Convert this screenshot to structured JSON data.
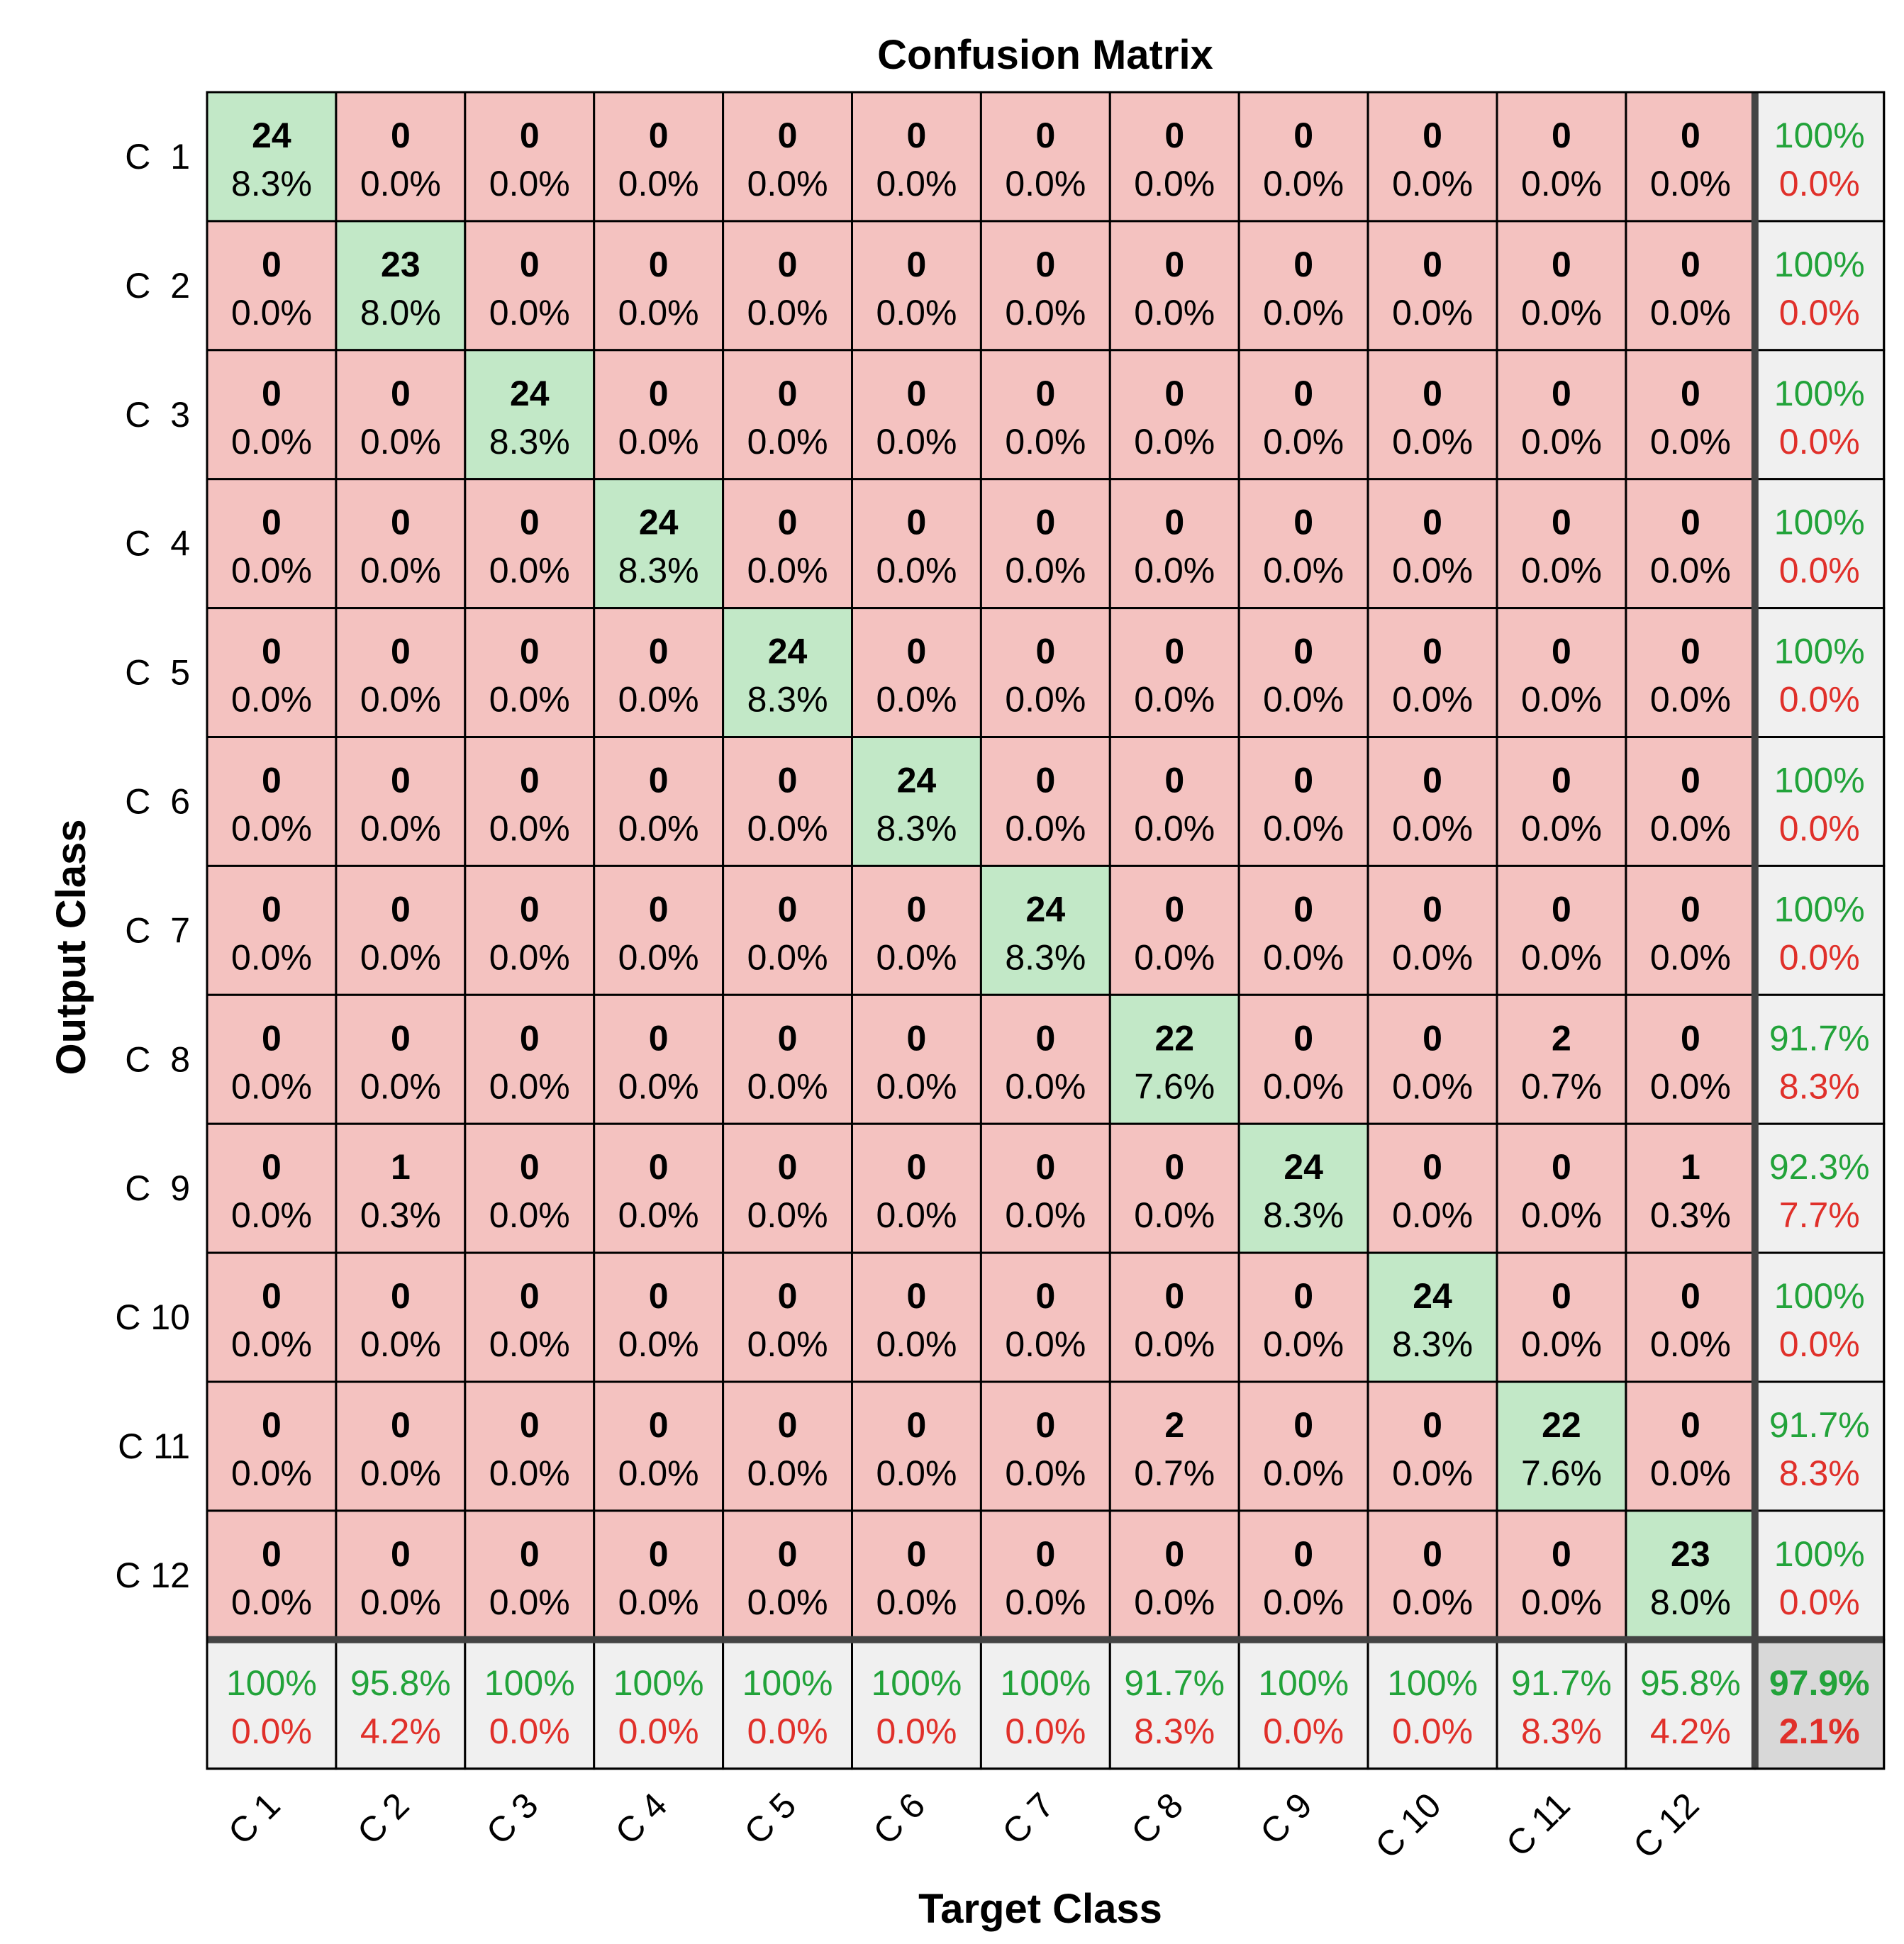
{
  "chart_data": {
    "type": "heatmap",
    "title": "Confusion Matrix",
    "xlabel": "Target Class",
    "ylabel": "Output Class",
    "row_labels": [
      "C  1",
      "C  2",
      "C  3",
      "C  4",
      "C  5",
      "C  6",
      "C  7",
      "C  8",
      "C  9",
      "C 10",
      "C 11",
      "C 12"
    ],
    "col_labels": [
      "C 1",
      "C 2",
      "C 3",
      "C 4",
      "C 5",
      "C 6",
      "C 7",
      "C 8",
      "C 9",
      "C 10",
      "C 11",
      "C 12"
    ],
    "matrix": [
      [
        24,
        0,
        0,
        0,
        0,
        0,
        0,
        0,
        0,
        0,
        0,
        0
      ],
      [
        0,
        23,
        0,
        0,
        0,
        0,
        0,
        0,
        0,
        0,
        0,
        0
      ],
      [
        0,
        0,
        24,
        0,
        0,
        0,
        0,
        0,
        0,
        0,
        0,
        0
      ],
      [
        0,
        0,
        0,
        24,
        0,
        0,
        0,
        0,
        0,
        0,
        0,
        0
      ],
      [
        0,
        0,
        0,
        0,
        24,
        0,
        0,
        0,
        0,
        0,
        0,
        0
      ],
      [
        0,
        0,
        0,
        0,
        0,
        24,
        0,
        0,
        0,
        0,
        0,
        0
      ],
      [
        0,
        0,
        0,
        0,
        0,
        0,
        24,
        0,
        0,
        0,
        0,
        0
      ],
      [
        0,
        0,
        0,
        0,
        0,
        0,
        0,
        22,
        0,
        0,
        2,
        0
      ],
      [
        0,
        1,
        0,
        0,
        0,
        0,
        0,
        0,
        24,
        0,
        0,
        1
      ],
      [
        0,
        0,
        0,
        0,
        0,
        0,
        0,
        0,
        0,
        24,
        0,
        0
      ],
      [
        0,
        0,
        0,
        0,
        0,
        0,
        0,
        2,
        0,
        0,
        22,
        0
      ],
      [
        0,
        0,
        0,
        0,
        0,
        0,
        0,
        0,
        0,
        0,
        0,
        23
      ]
    ],
    "matrix_percent": [
      [
        "8.3%",
        "0.0%",
        "0.0%",
        "0.0%",
        "0.0%",
        "0.0%",
        "0.0%",
        "0.0%",
        "0.0%",
        "0.0%",
        "0.0%",
        "0.0%"
      ],
      [
        "0.0%",
        "8.0%",
        "0.0%",
        "0.0%",
        "0.0%",
        "0.0%",
        "0.0%",
        "0.0%",
        "0.0%",
        "0.0%",
        "0.0%",
        "0.0%"
      ],
      [
        "0.0%",
        "0.0%",
        "8.3%",
        "0.0%",
        "0.0%",
        "0.0%",
        "0.0%",
        "0.0%",
        "0.0%",
        "0.0%",
        "0.0%",
        "0.0%"
      ],
      [
        "0.0%",
        "0.0%",
        "0.0%",
        "8.3%",
        "0.0%",
        "0.0%",
        "0.0%",
        "0.0%",
        "0.0%",
        "0.0%",
        "0.0%",
        "0.0%"
      ],
      [
        "0.0%",
        "0.0%",
        "0.0%",
        "0.0%",
        "8.3%",
        "0.0%",
        "0.0%",
        "0.0%",
        "0.0%",
        "0.0%",
        "0.0%",
        "0.0%"
      ],
      [
        "0.0%",
        "0.0%",
        "0.0%",
        "0.0%",
        "0.0%",
        "8.3%",
        "0.0%",
        "0.0%",
        "0.0%",
        "0.0%",
        "0.0%",
        "0.0%"
      ],
      [
        "0.0%",
        "0.0%",
        "0.0%",
        "0.0%",
        "0.0%",
        "0.0%",
        "8.3%",
        "0.0%",
        "0.0%",
        "0.0%",
        "0.0%",
        "0.0%"
      ],
      [
        "0.0%",
        "0.0%",
        "0.0%",
        "0.0%",
        "0.0%",
        "0.0%",
        "0.0%",
        "7.6%",
        "0.0%",
        "0.0%",
        "0.7%",
        "0.0%"
      ],
      [
        "0.0%",
        "0.3%",
        "0.0%",
        "0.0%",
        "0.0%",
        "0.0%",
        "0.0%",
        "0.0%",
        "8.3%",
        "0.0%",
        "0.0%",
        "0.3%"
      ],
      [
        "0.0%",
        "0.0%",
        "0.0%",
        "0.0%",
        "0.0%",
        "0.0%",
        "0.0%",
        "0.0%",
        "0.0%",
        "8.3%",
        "0.0%",
        "0.0%"
      ],
      [
        "0.0%",
        "0.0%",
        "0.0%",
        "0.0%",
        "0.0%",
        "0.0%",
        "0.0%",
        "0.7%",
        "0.0%",
        "0.0%",
        "7.6%",
        "0.0%"
      ],
      [
        "0.0%",
        "0.0%",
        "0.0%",
        "0.0%",
        "0.0%",
        "0.0%",
        "0.0%",
        "0.0%",
        "0.0%",
        "0.0%",
        "0.0%",
        "8.0%"
      ]
    ],
    "row_summary": [
      {
        "correct": "100%",
        "error": "0.0%"
      },
      {
        "correct": "100%",
        "error": "0.0%"
      },
      {
        "correct": "100%",
        "error": "0.0%"
      },
      {
        "correct": "100%",
        "error": "0.0%"
      },
      {
        "correct": "100%",
        "error": "0.0%"
      },
      {
        "correct": "100%",
        "error": "0.0%"
      },
      {
        "correct": "100%",
        "error": "0.0%"
      },
      {
        "correct": "91.7%",
        "error": "8.3%"
      },
      {
        "correct": "92.3%",
        "error": "7.7%"
      },
      {
        "correct": "100%",
        "error": "0.0%"
      },
      {
        "correct": "91.7%",
        "error": "8.3%"
      },
      {
        "correct": "100%",
        "error": "0.0%"
      }
    ],
    "col_summary": [
      {
        "correct": "100%",
        "error": "0.0%"
      },
      {
        "correct": "95.8%",
        "error": "4.2%"
      },
      {
        "correct": "100%",
        "error": "0.0%"
      },
      {
        "correct": "100%",
        "error": "0.0%"
      },
      {
        "correct": "100%",
        "error": "0.0%"
      },
      {
        "correct": "100%",
        "error": "0.0%"
      },
      {
        "correct": "100%",
        "error": "0.0%"
      },
      {
        "correct": "91.7%",
        "error": "8.3%"
      },
      {
        "correct": "100%",
        "error": "0.0%"
      },
      {
        "correct": "100%",
        "error": "0.0%"
      },
      {
        "correct": "91.7%",
        "error": "8.3%"
      },
      {
        "correct": "95.8%",
        "error": "4.2%"
      }
    ],
    "overall": {
      "correct": "97.9%",
      "error": "2.1%"
    }
  },
  "colors": {
    "diagonal_cell": "#c2e8c7",
    "offdiagonal_cell": "#f4c2c0",
    "summary_cell": "#f0f0f0",
    "overall_cell": "#d8d8d8",
    "correct_text": "#22a33a",
    "error_text": "#e0302a",
    "text": "#000000"
  }
}
